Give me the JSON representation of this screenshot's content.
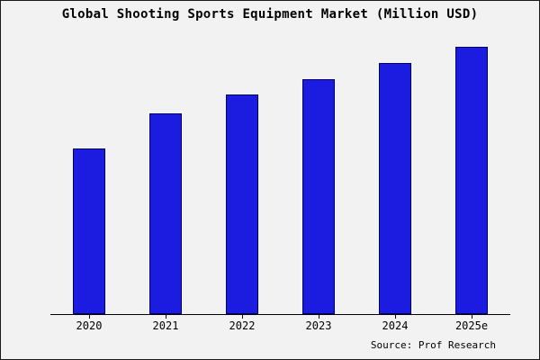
{
  "title": "Global Shooting Sports Equipment Market (Million USD)",
  "source": "Source: Prof Research",
  "chart_data": {
    "type": "bar",
    "title": "Global Shooting Sports Equipment Market (Million USD)",
    "categories": [
      "2020",
      "2021",
      "2022",
      "2023",
      "2024",
      "2025e"
    ],
    "values": [
      62,
      75,
      82,
      88,
      94,
      100
    ],
    "xlabel": "",
    "ylabel": "",
    "ylim": [
      0,
      103
    ],
    "grid": false,
    "legend": false,
    "y_axis_labels_shown": false,
    "bar_fill": "#1c1ce0",
    "bar_border": "#000066",
    "background": "#f2f2f2",
    "source_label": "Source: Prof Research"
  }
}
